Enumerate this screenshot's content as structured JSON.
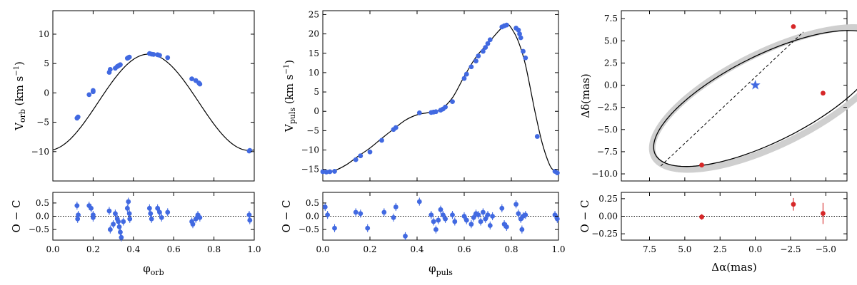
{
  "chart_data": [
    {
      "id": "orbital",
      "type": "scatter",
      "ylabel": "V_orb (km s^-1)",
      "ylabel_main": "V",
      "ylabel_sub": "orb",
      "ylabel_unit": "(km s",
      "ylabel_exp": "−1",
      "ylabel_close": ")",
      "xlabel_main": "φ",
      "xlabel_sub": "orb",
      "xlim": [
        0,
        1
      ],
      "ylim": [
        -15,
        14
      ],
      "yticks": [
        {
          "v": 10,
          "t": "10"
        },
        {
          "v": 5,
          "t": "5"
        },
        {
          "v": 0,
          "t": "0"
        },
        {
          "v": -5,
          "t": "−5"
        },
        {
          "v": -10,
          "t": "−10"
        }
      ],
      "xticks": [
        {
          "v": 0,
          "t": "0.0"
        },
        {
          "v": 0.2,
          "t": "0.2"
        },
        {
          "v": 0.4,
          "t": "0.4"
        },
        {
          "v": 0.6,
          "t": "0.6"
        },
        {
          "v": 0.8,
          "t": "0.8"
        },
        {
          "v": 1,
          "t": "1.0"
        }
      ],
      "model": {
        "amplitude": 8.2,
        "offset": -1.6,
        "phase_max": 0.475
      },
      "points": [
        [
          0.12,
          -4.3
        ],
        [
          0.125,
          -4.1
        ],
        [
          0.18,
          -0.3
        ],
        [
          0.2,
          0.2
        ],
        [
          0.2,
          0.4
        ],
        [
          0.28,
          3.5
        ],
        [
          0.285,
          4.0
        ],
        [
          0.31,
          4.2
        ],
        [
          0.32,
          4.5
        ],
        [
          0.325,
          4.6
        ],
        [
          0.33,
          4.7
        ],
        [
          0.335,
          4.8
        ],
        [
          0.37,
          5.9
        ],
        [
          0.375,
          6.0
        ],
        [
          0.38,
          6.1
        ],
        [
          0.48,
          6.7
        ],
        [
          0.49,
          6.6
        ],
        [
          0.5,
          6.55
        ],
        [
          0.52,
          6.5
        ],
        [
          0.53,
          6.4
        ],
        [
          0.57,
          6.0
        ],
        [
          0.69,
          2.4
        ],
        [
          0.71,
          2.1
        ],
        [
          0.725,
          1.7
        ],
        [
          0.73,
          1.5
        ],
        [
          0.975,
          -9.9
        ],
        [
          0.978,
          -9.8
        ]
      ],
      "residual": {
        "ylabel": "O − C",
        "ylim": [
          -0.9,
          0.9
        ],
        "yticks": [
          {
            "v": 0.5,
            "t": "0.5"
          },
          {
            "v": 0.0,
            "t": "0.0"
          },
          {
            "v": -0.5,
            "t": "−0.5"
          }
        ],
        "error": 0.15,
        "points": [
          [
            0.12,
            0.4
          ],
          [
            0.123,
            -0.1
          ],
          [
            0.126,
            0.05
          ],
          [
            0.18,
            0.4
          ],
          [
            0.19,
            0.3
          ],
          [
            0.2,
            0.05
          ],
          [
            0.2,
            -0.05
          ],
          [
            0.28,
            0.2
          ],
          [
            0.285,
            -0.5
          ],
          [
            0.3,
            -0.3
          ],
          [
            0.31,
            0.1
          ],
          [
            0.32,
            -0.1
          ],
          [
            0.325,
            -0.2
          ],
          [
            0.33,
            -0.4
          ],
          [
            0.335,
            -0.6
          ],
          [
            0.34,
            -0.8
          ],
          [
            0.35,
            -0.2
          ],
          [
            0.37,
            0.3
          ],
          [
            0.375,
            0.55
          ],
          [
            0.38,
            0.1
          ],
          [
            0.382,
            -0.1
          ],
          [
            0.48,
            0.3
          ],
          [
            0.485,
            0.1
          ],
          [
            0.49,
            -0.1
          ],
          [
            0.52,
            0.3
          ],
          [
            0.53,
            0.15
          ],
          [
            0.54,
            -0.05
          ],
          [
            0.57,
            0.15
          ],
          [
            0.69,
            -0.2
          ],
          [
            0.695,
            -0.3
          ],
          [
            0.71,
            -0.1
          ],
          [
            0.72,
            0.05
          ],
          [
            0.73,
            -0.05
          ],
          [
            0.975,
            0.05
          ],
          [
            0.978,
            -0.15
          ]
        ]
      }
    },
    {
      "id": "pulsation",
      "type": "scatter",
      "ylabel": "V_puls (km s^-1)",
      "ylabel_main": "V",
      "ylabel_sub": "puls",
      "ylabel_unit": "(km s",
      "ylabel_exp": "−1",
      "ylabel_close": ")",
      "xlabel_main": "φ",
      "xlabel_sub": "puls",
      "xlim": [
        0,
        1
      ],
      "ylim": [
        -18,
        26
      ],
      "yticks": [
        {
          "v": 25,
          "t": "25"
        },
        {
          "v": 20,
          "t": "20"
        },
        {
          "v": 15,
          "t": "15"
        },
        {
          "v": 10,
          "t": "10"
        },
        {
          "v": 5,
          "t": "5"
        },
        {
          "v": 0,
          "t": "0"
        },
        {
          "v": -5,
          "t": "−5"
        },
        {
          "v": -10,
          "t": "−10"
        },
        {
          "v": -15,
          "t": "−15"
        }
      ],
      "xticks": [
        {
          "v": 0,
          "t": "0.0"
        },
        {
          "v": 0.2,
          "t": "0.2"
        },
        {
          "v": 0.4,
          "t": "0.4"
        },
        {
          "v": 0.6,
          "t": "0.6"
        },
        {
          "v": 0.8,
          "t": "0.8"
        },
        {
          "v": 1,
          "t": "1.0"
        }
      ],
      "curve": [
        [
          0,
          -15.7
        ],
        [
          0.05,
          -15.3
        ],
        [
          0.1,
          -13.8
        ],
        [
          0.15,
          -11.6
        ],
        [
          0.2,
          -9.5
        ],
        [
          0.25,
          -7.0
        ],
        [
          0.3,
          -4.6
        ],
        [
          0.35,
          -2.3
        ],
        [
          0.4,
          -0.9
        ],
        [
          0.45,
          -0.3
        ],
        [
          0.5,
          0.5
        ],
        [
          0.55,
          3.5
        ],
        [
          0.6,
          9.0
        ],
        [
          0.65,
          14.0
        ],
        [
          0.7,
          17.5
        ],
        [
          0.75,
          21.0
        ],
        [
          0.78,
          22.5
        ],
        [
          0.8,
          21.5
        ],
        [
          0.83,
          18.0
        ],
        [
          0.86,
          12.0
        ],
        [
          0.9,
          0.0
        ],
        [
          0.93,
          -8.0
        ],
        [
          0.96,
          -13.5
        ],
        [
          0.98,
          -15.3
        ],
        [
          1.0,
          -15.8
        ]
      ],
      "points": [
        [
          0.0,
          -15.6
        ],
        [
          0.015,
          -15.7
        ],
        [
          0.03,
          -15.6
        ],
        [
          0.05,
          -15.5
        ],
        [
          0.14,
          -12.5
        ],
        [
          0.16,
          -11.5
        ],
        [
          0.2,
          -10.5
        ],
        [
          0.25,
          -7.5
        ],
        [
          0.3,
          -4.7
        ],
        [
          0.31,
          -4.2
        ],
        [
          0.41,
          -0.4
        ],
        [
          0.46,
          -0.3
        ],
        [
          0.47,
          -0.2
        ],
        [
          0.48,
          -0.1
        ],
        [
          0.5,
          0.3
        ],
        [
          0.51,
          0.6
        ],
        [
          0.52,
          1.1
        ],
        [
          0.55,
          2.5
        ],
        [
          0.6,
          8.5
        ],
        [
          0.61,
          9.6
        ],
        [
          0.63,
          11.5
        ],
        [
          0.65,
          13.0
        ],
        [
          0.66,
          14.3
        ],
        [
          0.68,
          15.5
        ],
        [
          0.69,
          16.5
        ],
        [
          0.7,
          17.5
        ],
        [
          0.71,
          18.5
        ],
        [
          0.76,
          21.8
        ],
        [
          0.77,
          22.1
        ],
        [
          0.78,
          22.3
        ],
        [
          0.82,
          21.5
        ],
        [
          0.83,
          21.0
        ],
        [
          0.835,
          20.0
        ],
        [
          0.84,
          19.0
        ],
        [
          0.85,
          15.5
        ],
        [
          0.86,
          13.8
        ],
        [
          0.91,
          -6.5
        ],
        [
          0.985,
          -15.5
        ],
        [
          0.995,
          -15.9
        ]
      ],
      "residual": {
        "ylabel": "O − C",
        "ylim": [
          -0.9,
          0.9
        ],
        "yticks": [
          {
            "v": 0.5,
            "t": "0.5"
          },
          {
            "v": 0.0,
            "t": "0.0"
          },
          {
            "v": -0.5,
            "t": "−0.5"
          }
        ],
        "error": 0.15,
        "points": [
          [
            0.01,
            0.35
          ],
          [
            0.02,
            0.05
          ],
          [
            0.05,
            -0.45
          ],
          [
            0.14,
            0.15
          ],
          [
            0.16,
            0.1
          ],
          [
            0.19,
            -0.45
          ],
          [
            0.26,
            0.15
          ],
          [
            0.3,
            -0.05
          ],
          [
            0.31,
            0.35
          ],
          [
            0.35,
            -0.75
          ],
          [
            0.41,
            0.55
          ],
          [
            0.46,
            0.05
          ],
          [
            0.47,
            -0.2
          ],
          [
            0.48,
            -0.5
          ],
          [
            0.49,
            -0.15
          ],
          [
            0.5,
            0.25
          ],
          [
            0.51,
            0.05
          ],
          [
            0.52,
            -0.1
          ],
          [
            0.55,
            0.05
          ],
          [
            0.56,
            -0.2
          ],
          [
            0.6,
            0.0
          ],
          [
            0.61,
            -0.15
          ],
          [
            0.63,
            -0.3
          ],
          [
            0.64,
            -0.05
          ],
          [
            0.65,
            0.1
          ],
          [
            0.66,
            0.05
          ],
          [
            0.67,
            -0.2
          ],
          [
            0.68,
            0.15
          ],
          [
            0.69,
            -0.1
          ],
          [
            0.7,
            0.05
          ],
          [
            0.71,
            -0.35
          ],
          [
            0.72,
            0.0
          ],
          [
            0.76,
            0.3
          ],
          [
            0.77,
            -0.3
          ],
          [
            0.78,
            -0.4
          ],
          [
            0.82,
            0.45
          ],
          [
            0.83,
            0.1
          ],
          [
            0.84,
            -0.1
          ],
          [
            0.845,
            -0.5
          ],
          [
            0.85,
            0.0
          ],
          [
            0.86,
            0.05
          ],
          [
            0.985,
            0.05
          ],
          [
            0.995,
            -0.1
          ]
        ]
      }
    },
    {
      "id": "astrometric",
      "type": "scatter",
      "ylabel": "Δδ(mas)",
      "xlabel": "Δα(mas)",
      "xlim": [
        9.5,
        -6.5
      ],
      "ylim": [
        -10.8,
        8.4
      ],
      "yticks": [
        {
          "v": 7.5,
          "t": "7.5"
        },
        {
          "v": 5.0,
          "t": "5.0"
        },
        {
          "v": 2.5,
          "t": "2.5"
        },
        {
          "v": 0.0,
          "t": "0.0"
        },
        {
          "v": -2.5,
          "t": "−2.5"
        },
        {
          "v": -5.0,
          "t": "−5.0"
        },
        {
          "v": -7.5,
          "t": "−7.5"
        },
        {
          "v": -10.0,
          "t": "−10.0"
        }
      ],
      "xticks": [
        {
          "v": 7.5,
          "t": "7.5"
        },
        {
          "v": 5.0,
          "t": "5.0"
        },
        {
          "v": 2.5,
          "t": "2.5"
        },
        {
          "v": 0.0,
          "t": "0.0"
        },
        {
          "v": -2.5,
          "t": "−2.5"
        },
        {
          "v": -5.0,
          "t": "−5.0"
        }
      ],
      "ellipse": {
        "center": [
          0.85,
          -1.5
        ],
        "semi_major": 10.3,
        "semi_minor": 4.2,
        "angle_deg": 43
      },
      "node_line": [
        [
          6.7,
          -9.1
        ],
        [
          -3.4,
          6.0
        ]
      ],
      "star": [
        0.0,
        0.0
      ],
      "points": [
        [
          3.8,
          -9.0
        ],
        [
          -2.7,
          6.6
        ],
        [
          -4.8,
          -0.9
        ]
      ],
      "residual": {
        "ylabel": "O − C",
        "ylim": [
          -0.34,
          0.34
        ],
        "yticks": [
          {
            "v": 0.25,
            "t": "0.25"
          },
          {
            "v": 0.0,
            "t": "0.00"
          },
          {
            "v": -0.25,
            "t": "−0.25"
          }
        ],
        "points": [
          [
            3.8,
            -0.01,
            0.04
          ],
          [
            -2.7,
            0.17,
            0.09
          ],
          [
            -4.8,
            0.04,
            0.15
          ]
        ]
      }
    }
  ]
}
